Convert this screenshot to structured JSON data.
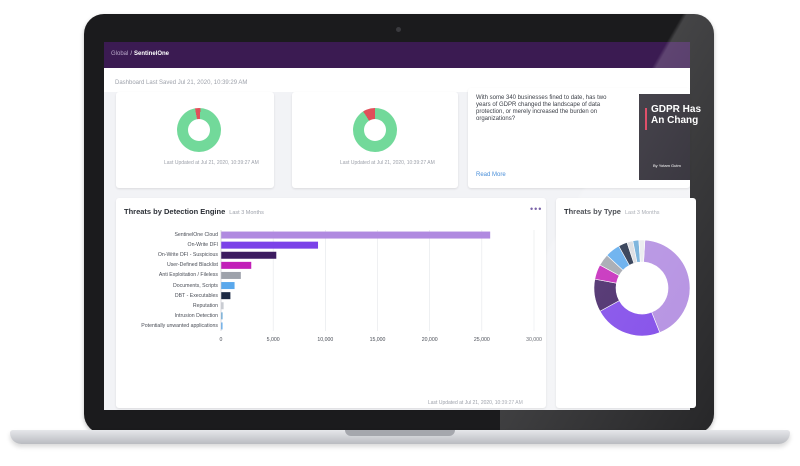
{
  "breadcrumb": {
    "root": "Global",
    "separator": "/",
    "current": "SentinelOne"
  },
  "dashboard_saved": "Dashboard Last Saved Jul 21, 2020, 10:39:29 AM",
  "top_cards": [
    {
      "updated": "Last Updated at Jul 21, 2020, 10:39:27 AM"
    },
    {
      "updated": "Last Updated at Jul 21, 2020, 10:39:27 AM"
    }
  ],
  "news": {
    "text": "With some 340 businesses fined to date, has two years of GDPR changed the landscape of data protection, or merely increased the burden on organizations?",
    "read_more": "Read More",
    "promo_title": "GDPR Has An Chang",
    "promo_byline": "By Yotam Gutm"
  },
  "threats_by_engine": {
    "title": "Threats by Detection Engine",
    "period": "Last 3 Months",
    "more": "•••",
    "updated": "Last Updated at Jul 21, 2020, 10:39:27 AM"
  },
  "threats_by_type": {
    "title": "Threats by Type",
    "period": "Last 3 Months"
  },
  "colors": {
    "accent_purple": "#3b1b52",
    "donut_green": "#72d99a",
    "donut_red": "#e0505a",
    "link_blue": "#4a8fd9"
  },
  "chart_data": [
    {
      "type": "bar",
      "orientation": "horizontal",
      "title": "Threats by Detection Engine",
      "categories": [
        "SentinelOne Cloud",
        "On-Write DFI",
        "On-Write DFI - Suspicious",
        "User-Defined Blacklist",
        "Anti Exploitation / Fileless",
        "Documents, Scripts",
        "DBT - Executables",
        "Reputation",
        "Intrusion Detection",
        "Potentially unwanted applications"
      ],
      "values": [
        25800,
        9300,
        5300,
        2900,
        1900,
        1300,
        900,
        250,
        150,
        120
      ],
      "bar_colors": [
        "#b08ae0",
        "#7b42e8",
        "#3d1c60",
        "#c21fb8",
        "#9ea2ab",
        "#5aa8ec",
        "#1d2a44",
        "#c9ccd2",
        "#6aaad8",
        "#5aa8ec"
      ],
      "xlim": [
        0,
        30000
      ],
      "x_ticks": [
        "0",
        "5,000",
        "10,000",
        "15,000",
        "20,000",
        "25,000",
        "30,000"
      ],
      "grid": true
    },
    {
      "type": "pie",
      "variant": "donut",
      "title": "Threats by Type",
      "slices": [
        {
          "value": 43,
          "color": "#b08ae0"
        },
        {
          "value": 23,
          "color": "#7b42e8"
        },
        {
          "value": 11,
          "color": "#3d1c60"
        },
        {
          "value": 5,
          "color": "#c21fb8"
        },
        {
          "value": 4,
          "color": "#9ea2ab"
        },
        {
          "value": 5,
          "color": "#5aa8ec"
        },
        {
          "value": 3,
          "color": "#1d2a44"
        },
        {
          "value": 2,
          "color": "#d9dbe0"
        },
        {
          "value": 2,
          "color": "#6aaad8"
        },
        {
          "value": 2,
          "color": "#e9eaee"
        }
      ]
    },
    {
      "type": "pie",
      "variant": "donut",
      "slices": [
        {
          "value": 96,
          "color": "#72d99a"
        },
        {
          "value": 4,
          "color": "#e0505a"
        }
      ]
    },
    {
      "type": "pie",
      "variant": "donut",
      "slices": [
        {
          "value": 91,
          "color": "#72d99a"
        },
        {
          "value": 9,
          "color": "#e0505a"
        }
      ]
    }
  ]
}
